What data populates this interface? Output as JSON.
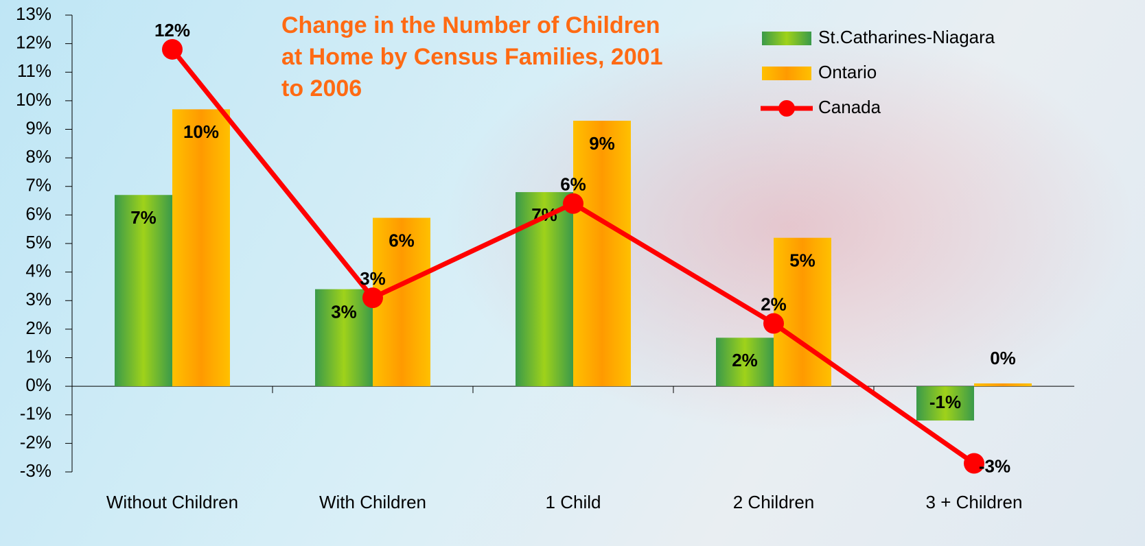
{
  "chart_data": {
    "type": "bar_line",
    "title": "Change in the Number of Children at Home by Census Families, 2001 to 2006",
    "categories": [
      "Without Children",
      "With Children",
      "1 Child",
      "2 Children",
      "3 + Children"
    ],
    "series": [
      {
        "name": "St.Catharines-Niagara",
        "type": "bar",
        "color": "#3a9a4a",
        "values": [
          6.7,
          3.4,
          6.8,
          1.7,
          -1.2
        ],
        "value_labels": [
          "7%",
          "3%",
          "7%",
          "2%",
          "-1%"
        ]
      },
      {
        "name": "Ontario",
        "type": "bar",
        "color": "#ffc000",
        "values": [
          9.7,
          5.9,
          9.3,
          5.2,
          0.1
        ],
        "value_labels": [
          "10%",
          "6%",
          "9%",
          "5%",
          "0%"
        ]
      },
      {
        "name": "Canada",
        "type": "line",
        "color": "#ff0000",
        "values": [
          11.8,
          3.1,
          6.4,
          2.2,
          -2.7
        ],
        "value_labels": [
          "12%",
          "3%",
          "6%",
          "2%",
          "-3%"
        ]
      }
    ],
    "ylim": [
      -3,
      13
    ],
    "yticks": [
      {
        "value": -3,
        "label": "-3%"
      },
      {
        "value": -2,
        "label": "-2%"
      },
      {
        "value": -1,
        "label": "-1%"
      },
      {
        "value": 0,
        "label": "0%"
      },
      {
        "value": 1,
        "label": "1%"
      },
      {
        "value": 2,
        "label": "2%"
      },
      {
        "value": 3,
        "label": "3%"
      },
      {
        "value": 4,
        "label": "4%"
      },
      {
        "value": 5,
        "label": "5%"
      },
      {
        "value": 6,
        "label": "6%"
      },
      {
        "value": 7,
        "label": "7%"
      },
      {
        "value": 8,
        "label": "8%"
      },
      {
        "value": 9,
        "label": "9%"
      },
      {
        "value": 10,
        "label": "10%"
      },
      {
        "value": 11,
        "label": "11%"
      },
      {
        "value": 12,
        "label": "12%"
      },
      {
        "value": 13,
        "label": "13%"
      }
    ],
    "legend": "upper right",
    "grid": false
  }
}
